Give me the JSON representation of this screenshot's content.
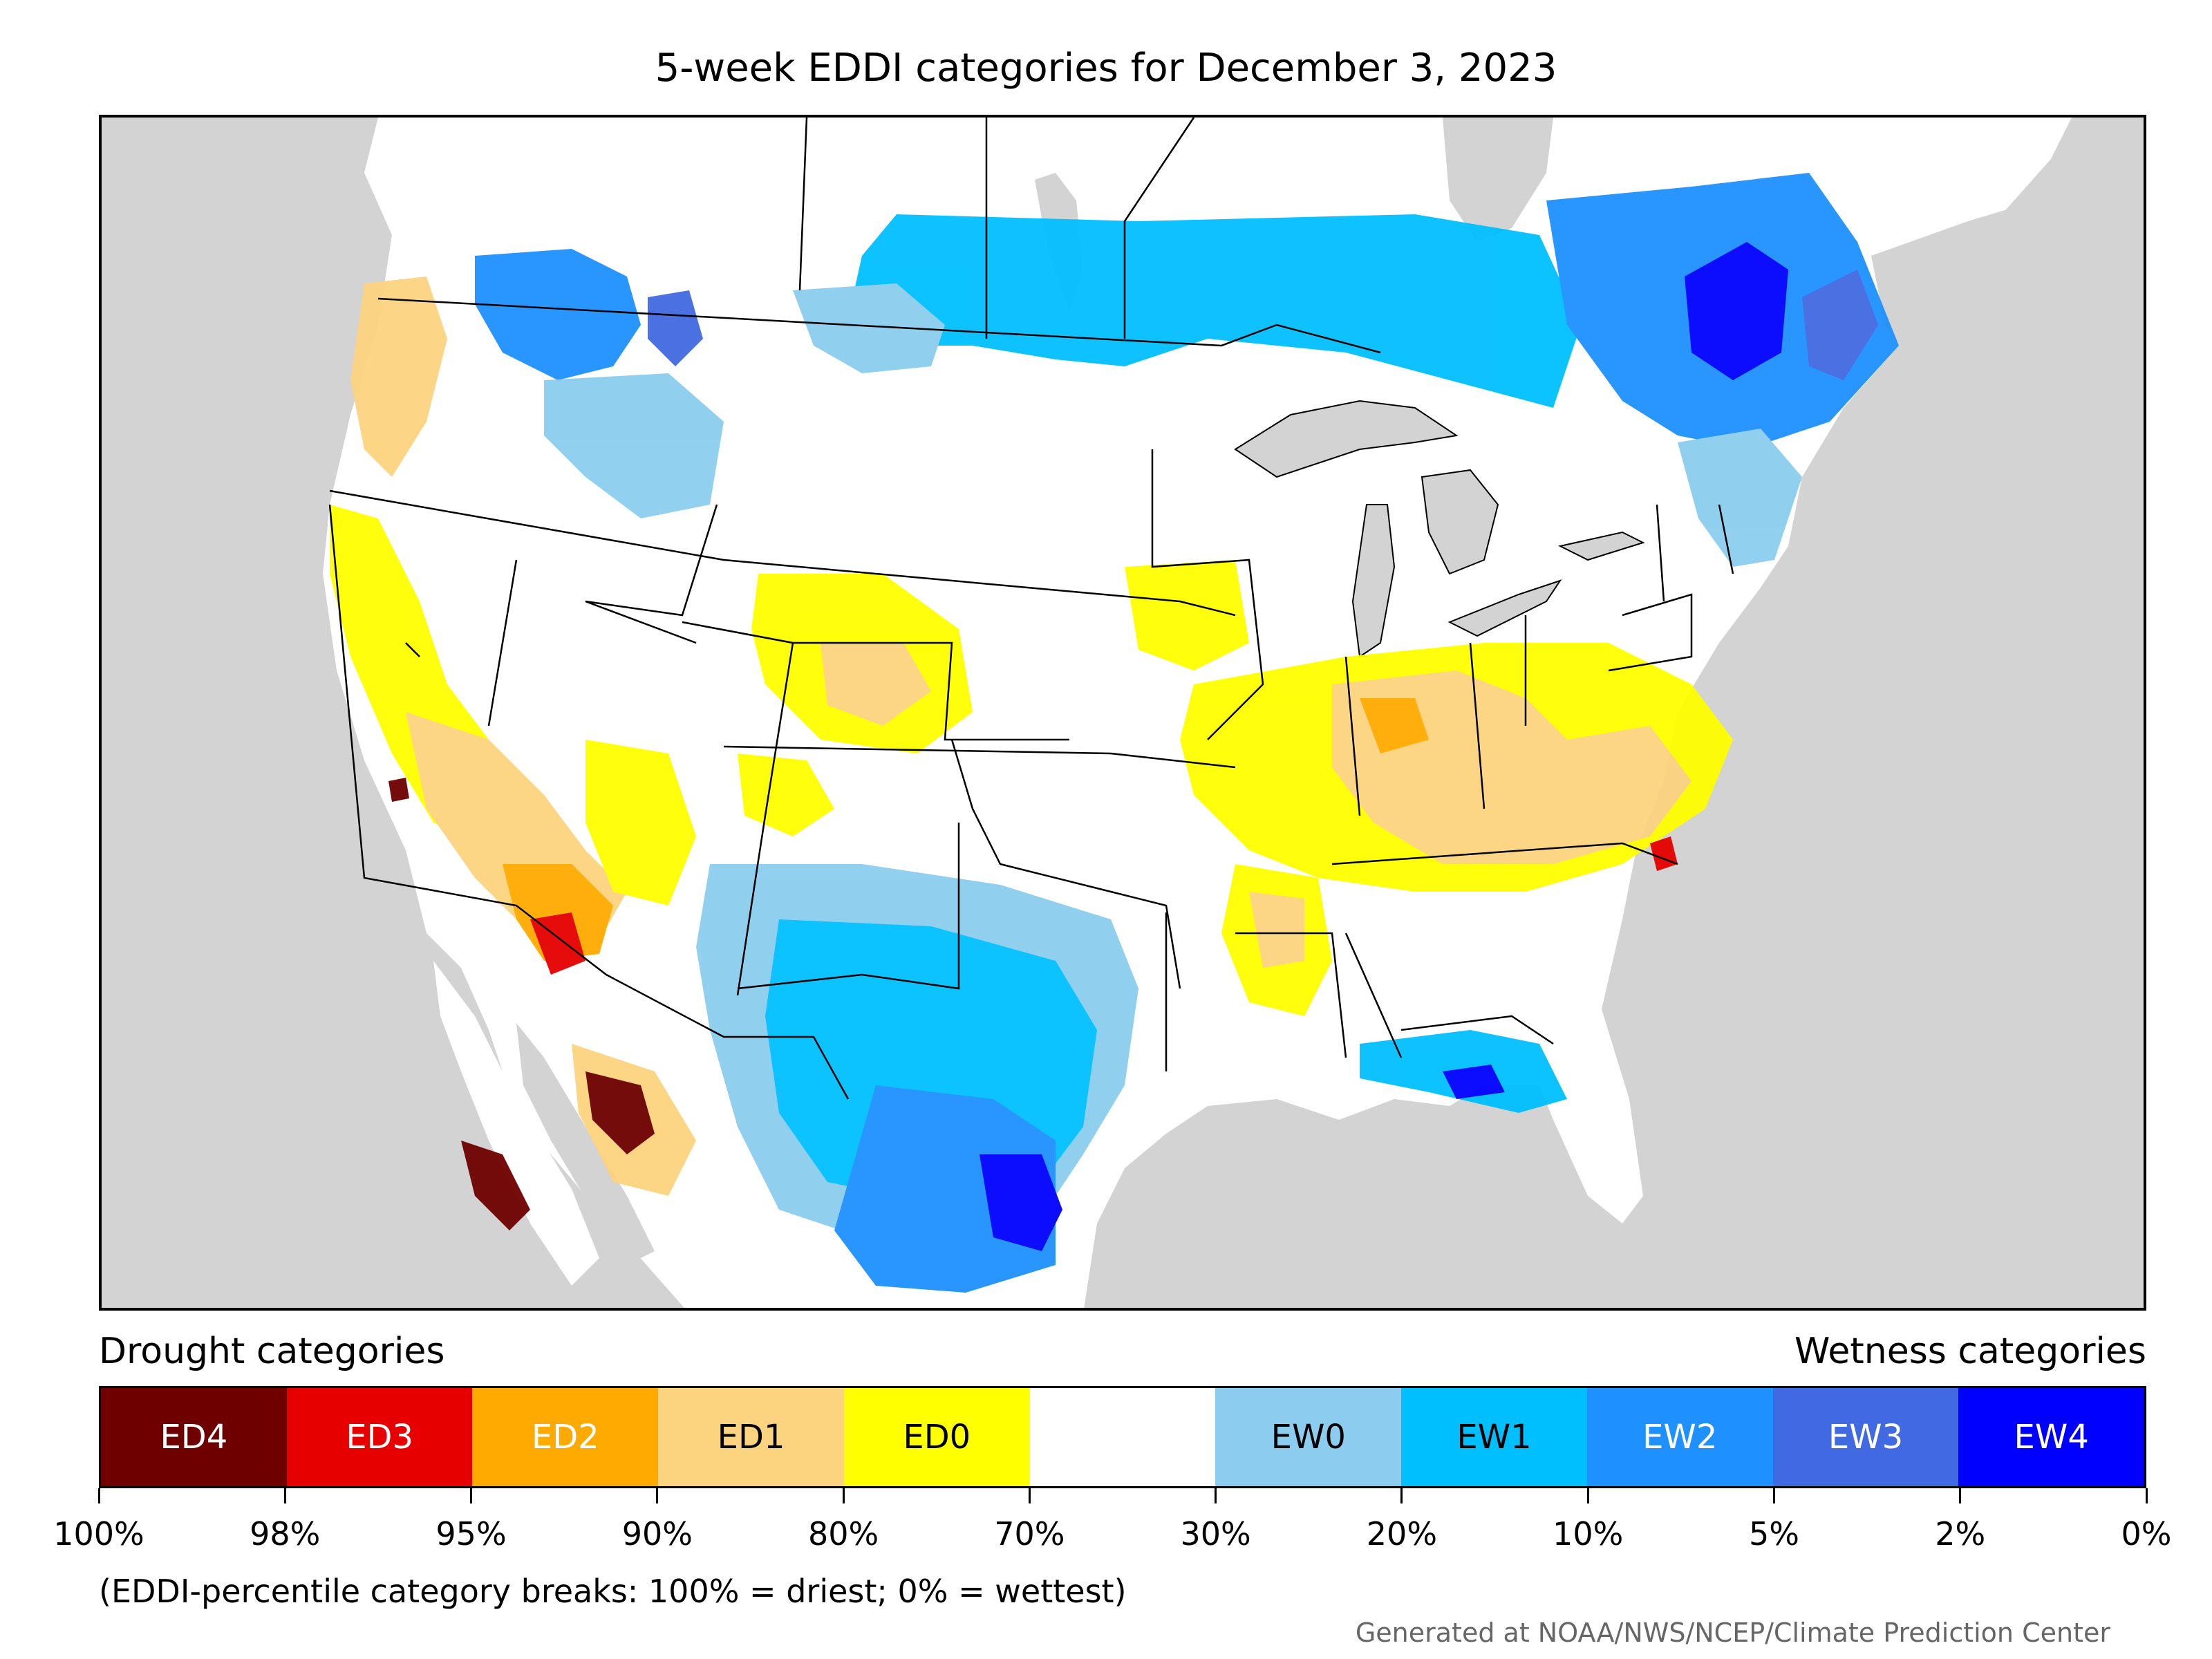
{
  "title": "5-week EDDI categories for December 3, 2023",
  "map": {
    "colors": {
      "ocean_and_outside": "#d3d3d3",
      "land_default": "#ffffff",
      "borders": "#000000"
    },
    "regions": [
      {
        "category": "ED0",
        "area": "Central Plains / Colorado-Wyoming"
      },
      {
        "category": "ED1",
        "area": "Ohio Valley / Tennessee / Carolinas"
      },
      {
        "category": "ED2",
        "area": "Southern California / Arizona border"
      },
      {
        "category": "ED4",
        "area": "Baja California / Sonora"
      },
      {
        "category": "EW1",
        "area": "Texas / southern Plains"
      },
      {
        "category": "EW4",
        "area": "Quebec / South Texas coast"
      }
    ]
  },
  "legend": {
    "drought_heading": "Drought categories",
    "wetness_heading": "Wetness categories",
    "categories": [
      {
        "label": "ED4",
        "color": "#6e0000",
        "text_color": "#ffffff"
      },
      {
        "label": "ED3",
        "color": "#e60000",
        "text_color": "#ffffff"
      },
      {
        "label": "ED2",
        "color": "#ffaa00",
        "text_color": "#ffffff"
      },
      {
        "label": "ED1",
        "color": "#fcd37f",
        "text_color": "#000000"
      },
      {
        "label": "ED0",
        "color": "#ffff00",
        "text_color": "#000000"
      },
      {
        "label": "",
        "color": "#ffffff",
        "text_color": "#000000"
      },
      {
        "label": "EW0",
        "color": "#8ccdef",
        "text_color": "#000000"
      },
      {
        "label": "EW1",
        "color": "#00bfff",
        "text_color": "#000000"
      },
      {
        "label": "EW2",
        "color": "#1e90ff",
        "text_color": "#ffffff"
      },
      {
        "label": "EW3",
        "color": "#4169e1",
        "text_color": "#ffffff"
      },
      {
        "label": "EW4",
        "color": "#0000ff",
        "text_color": "#ffffff"
      }
    ],
    "ticks": [
      "100%",
      "98%",
      "95%",
      "90%",
      "80%",
      "70%",
      "30%",
      "20%",
      "10%",
      "5%",
      "2%",
      "0%"
    ]
  },
  "note": "(EDDI-percentile category breaks: 100% = driest; 0% = wettest)",
  "credit": "Generated at NOAA/NWS/NCEP/Climate Prediction Center"
}
